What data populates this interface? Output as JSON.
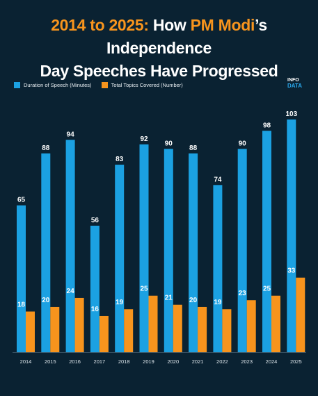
{
  "header": {
    "title_part1": "2014 to 2025:",
    "title_part2": " How ",
    "title_part3": "PM Modi",
    "title_part4": "’s Independence",
    "title_line2": "Day Speeches Have Progressed"
  },
  "logo": {
    "line1": "INFO",
    "line2": "DATA"
  },
  "colors": {
    "duration": "#1ba1e2",
    "topics": "#f7941d",
    "background": "#0a2232"
  },
  "chart_data": {
    "type": "bar",
    "categories": [
      "2014",
      "2015",
      "2016",
      "2017",
      "2018",
      "2019",
      "2020",
      "2021",
      "2022",
      "2023",
      "2024",
      "2025"
    ],
    "series": [
      {
        "name": "Duration of Speech (Minutes)",
        "values": [
          65,
          88,
          94,
          56,
          83,
          92,
          90,
          88,
          74,
          90,
          98,
          103
        ]
      },
      {
        "name": "Total Topics Covered (Number)",
        "values": [
          18,
          20,
          24,
          16,
          19,
          25,
          21,
          20,
          19,
          23,
          25,
          33
        ]
      }
    ],
    "title": "2014 to 2025: How PM Modi’s Independence Day Speeches Have Progressed",
    "xlabel": "",
    "ylabel": "",
    "ylim": [
      0,
      110
    ],
    "legend": "top-left",
    "grid": false
  }
}
